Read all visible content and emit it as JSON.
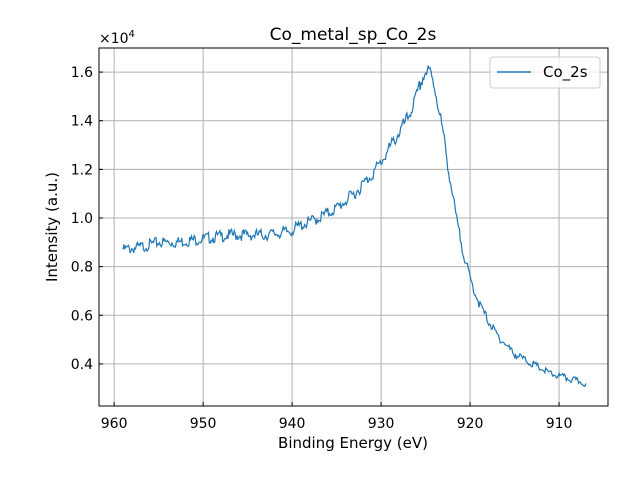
{
  "chart_data": {
    "type": "line",
    "title": "Co_metal_sp_Co_2s",
    "xlabel": "Binding Energy (eV)",
    "ylabel": "Intensity (a.u.)",
    "y_multiplier_label": "×10",
    "y_multiplier_exp": "4",
    "xlim": [
      961.7,
      904.5
    ],
    "ylim": [
      0.227,
      1.699
    ],
    "x_reversed": true,
    "grid": true,
    "legend_position": "upper-right",
    "x_ticks": [
      960,
      950,
      940,
      930,
      920,
      910
    ],
    "x_tick_labels": [
      "960",
      "950",
      "940",
      "930",
      "920",
      "910"
    ],
    "y_ticks": [
      0.4,
      0.6,
      0.8,
      1.0,
      1.2,
      1.4,
      1.6
    ],
    "y_tick_labels": [
      "0.4",
      "0.6",
      "0.8",
      "1.0",
      "1.2",
      "1.4",
      "1.6"
    ],
    "series": [
      {
        "name": "Co_2s",
        "color": "#1f77b4",
        "x": [
          959,
          957,
          955,
          953,
          951,
          949,
          947,
          945,
          943,
          941,
          940,
          939,
          937,
          935,
          934,
          933,
          932,
          931,
          930,
          929,
          928,
          927,
          926,
          925.5,
          925,
          924.5,
          924,
          923.5,
          923,
          922.5,
          922,
          921.5,
          921,
          920.5,
          920,
          919,
          918,
          917,
          916,
          915,
          914,
          913,
          912,
          911,
          910,
          909,
          908,
          907
        ],
        "y": [
          0.87,
          0.88,
          0.9,
          0.9,
          0.91,
          0.92,
          0.93,
          0.93,
          0.93,
          0.94,
          0.95,
          0.97,
          1.0,
          1.04,
          1.07,
          1.1,
          1.14,
          1.18,
          1.23,
          1.29,
          1.35,
          1.41,
          1.5,
          1.56,
          1.6,
          1.6,
          1.54,
          1.45,
          1.34,
          1.22,
          1.1,
          0.99,
          0.9,
          0.82,
          0.75,
          0.65,
          0.58,
          0.52,
          0.48,
          0.44,
          0.42,
          0.4,
          0.38,
          0.36,
          0.35,
          0.34,
          0.33,
          0.32
        ]
      }
    ]
  }
}
